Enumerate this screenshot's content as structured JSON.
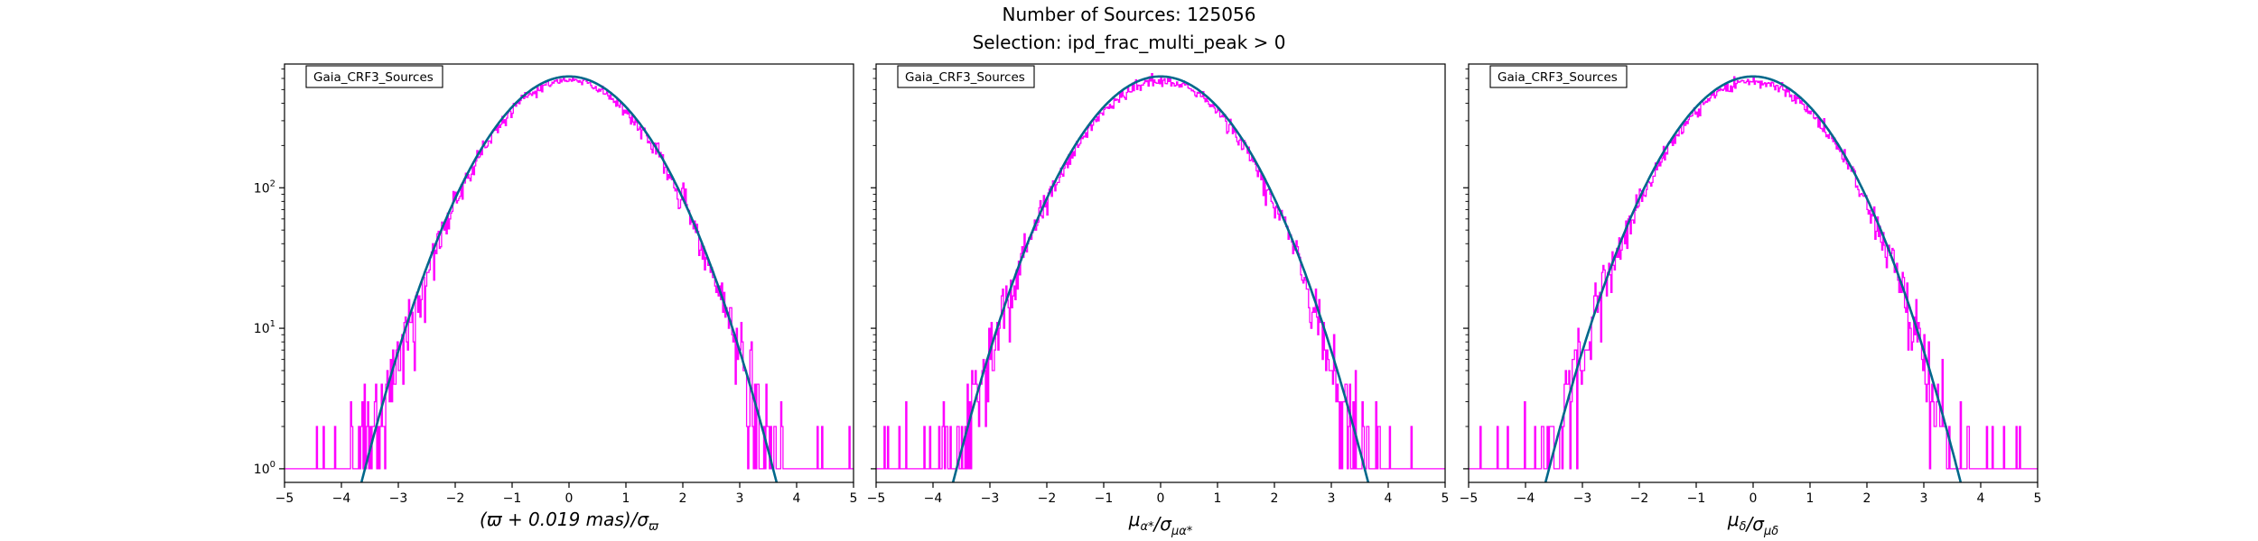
{
  "figure": {
    "title_line1": "Number of Sources: 125056",
    "title_line2": "Selection: ipd_frac_multi_peak > 0"
  },
  "colors": {
    "histogram": "#ff00ff",
    "fit_curve": "#00688b",
    "axes": "#000000",
    "background": "#ffffff"
  },
  "chart_data": [
    {
      "type": "line",
      "legend_label": "Gaia_CRF3_Sources",
      "legend_position": "top-left",
      "xlabel": "(ϖ + 0.019 mas)/σ_ϖ",
      "xlabel_parts": [
        {
          "t": "(ϖ + 0.019 ",
          "style": "italic"
        },
        {
          "t": "mas",
          "style": "italic"
        },
        {
          "t": ")/σ",
          "style": "italic"
        },
        {
          "t": "ϖ",
          "style": "italic",
          "sub": true
        }
      ],
      "ylabel": "",
      "xlim": [
        -5,
        5
      ],
      "ylim": [
        0.8,
        760
      ],
      "yscale": "log",
      "xticks": [
        "−5",
        "−4",
        "−3",
        "−2",
        "−1",
        "0",
        "1",
        "2",
        "3",
        "4",
        "5"
      ],
      "yticks": [
        {
          "value": 1,
          "base": "10",
          "exp": "0"
        },
        {
          "value": 10,
          "base": "10",
          "exp": "1"
        },
        {
          "value": 100,
          "base": "10",
          "exp": "2"
        }
      ],
      "show_ytick_labels": true,
      "fit": {
        "name": "gaussian",
        "amplitude": 620,
        "mean": 0.0,
        "sigma": 1.0
      },
      "histogram": {
        "bin_width": 0.02,
        "peak": 580,
        "floor": 1,
        "clip_low": -5,
        "clip_high": 5,
        "seed": 11
      }
    },
    {
      "type": "line",
      "legend_label": "Gaia_CRF3_Sources",
      "legend_position": "top-left",
      "xlabel": "μ_α*/σ_μα*",
      "xlabel_parts": [
        {
          "t": "μ",
          "style": "italic"
        },
        {
          "t": "α*",
          "style": "italic",
          "sub": true
        },
        {
          "t": "/σ",
          "style": "italic"
        },
        {
          "t": "μα*",
          "style": "italic",
          "sub": true
        }
      ],
      "ylabel": "",
      "xlim": [
        -5,
        5
      ],
      "ylim": [
        0.8,
        760
      ],
      "yscale": "log",
      "xticks": [
        "−5",
        "−4",
        "−3",
        "−2",
        "−1",
        "0",
        "1",
        "2",
        "3",
        "4",
        "5"
      ],
      "yticks": [
        {
          "value": 1,
          "base": "10",
          "exp": "0"
        },
        {
          "value": 10,
          "base": "10",
          "exp": "1"
        },
        {
          "value": 100,
          "base": "10",
          "exp": "2"
        }
      ],
      "show_ytick_labels": false,
      "fit": {
        "name": "gaussian",
        "amplitude": 620,
        "mean": 0.0,
        "sigma": 1.0
      },
      "histogram": {
        "bin_width": 0.02,
        "peak": 575,
        "floor": 1,
        "clip_low": -5,
        "clip_high": 5,
        "seed": 23
      }
    },
    {
      "type": "line",
      "legend_label": "Gaia_CRF3_Sources",
      "legend_position": "top-left",
      "xlabel": "μ_δ/σ_μδ",
      "xlabel_parts": [
        {
          "t": "μ",
          "style": "italic"
        },
        {
          "t": "δ",
          "style": "italic",
          "sub": true
        },
        {
          "t": "/σ",
          "style": "italic"
        },
        {
          "t": "μδ",
          "style": "italic",
          "sub": true
        }
      ],
      "ylabel": "",
      "xlim": [
        -5,
        5
      ],
      "ylim": [
        0.8,
        760
      ],
      "yscale": "log",
      "xticks": [
        "−5",
        "−4",
        "−3",
        "−2",
        "−1",
        "0",
        "1",
        "2",
        "3",
        "4",
        "5"
      ],
      "yticks": [
        {
          "value": 1,
          "base": "10",
          "exp": "0"
        },
        {
          "value": 10,
          "base": "10",
          "exp": "1"
        },
        {
          "value": 100,
          "base": "10",
          "exp": "2"
        }
      ],
      "show_ytick_labels": false,
      "fit": {
        "name": "gaussian",
        "amplitude": 620,
        "mean": 0.0,
        "sigma": 1.0
      },
      "histogram": {
        "bin_width": 0.02,
        "peak": 575,
        "floor": 1,
        "clip_low": -5,
        "clip_high": 5,
        "seed": 37
      }
    }
  ]
}
